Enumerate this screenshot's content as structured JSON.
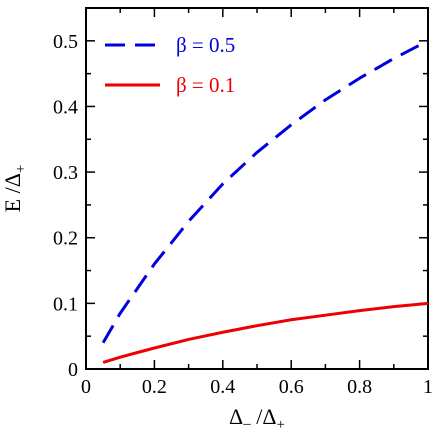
{
  "chart_data": {
    "type": "line",
    "xlabel": {
      "main": "Δ",
      "sub1": "–",
      "sep": " /Δ",
      "sub2": "+"
    },
    "ylabel": {
      "main": "E /Δ",
      "sub": "+"
    },
    "xlim": [
      0,
      1
    ],
    "ylim": [
      0,
      0.55
    ],
    "x_ticks": [
      {
        "value": 0,
        "label": "0"
      },
      {
        "value": 0.2,
        "label": "0.2"
      },
      {
        "value": 0.4,
        "label": "0.4"
      },
      {
        "value": 0.6,
        "label": "0.6"
      },
      {
        "value": 0.8,
        "label": "0.8"
      },
      {
        "value": 1.0,
        "label": "1"
      }
    ],
    "y_ticks": [
      {
        "value": 0,
        "label": "0"
      },
      {
        "value": 0.1,
        "label": "0.1"
      },
      {
        "value": 0.2,
        "label": "0.2"
      },
      {
        "value": 0.3,
        "label": "0.3"
      },
      {
        "value": 0.4,
        "label": "0.4"
      },
      {
        "value": 0.5,
        "label": "0.5"
      }
    ],
    "grid": false,
    "legend_position": "top-left",
    "series": [
      {
        "name": "β = 0.5",
        "color": "#0000dd",
        "dash": "dashed",
        "x": [
          0.05,
          0.1,
          0.2,
          0.3,
          0.4,
          0.5,
          0.6,
          0.7,
          0.8,
          0.9,
          1.0
        ],
        "y": [
          0.04,
          0.085,
          0.16,
          0.225,
          0.282,
          0.33,
          0.372,
          0.41,
          0.443,
          0.473,
          0.5
        ]
      },
      {
        "name": "β = 0.1",
        "color": "#ee0000",
        "dash": "solid",
        "x": [
          0.05,
          0.1,
          0.2,
          0.3,
          0.4,
          0.5,
          0.6,
          0.7,
          0.8,
          0.9,
          1.0
        ],
        "y": [
          0.01,
          0.018,
          0.032,
          0.045,
          0.056,
          0.066,
          0.075,
          0.082,
          0.089,
          0.095,
          0.1
        ]
      }
    ]
  }
}
